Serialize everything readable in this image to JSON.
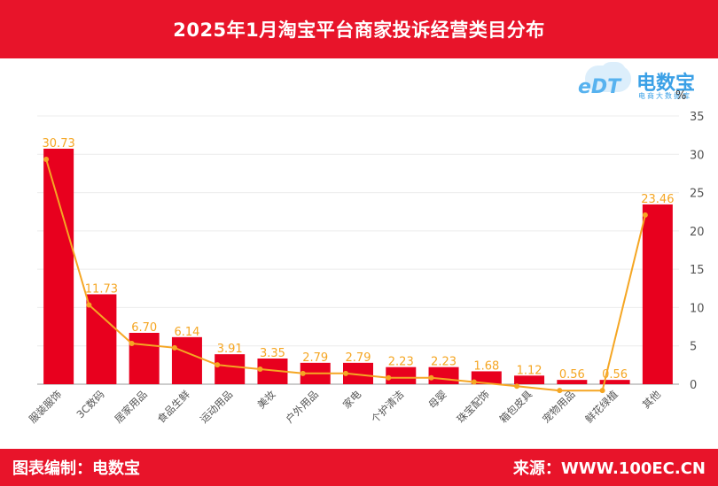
{
  "header": {
    "title": "2025年1月淘宝平台商家投诉经营类目分布"
  },
  "footer": {
    "left": "图表编制：电数宝",
    "right": "来源：WWW.100EC.CN"
  },
  "logo": {
    "en": "eDT",
    "name": "电数宝",
    "sub": "电商大数据库"
  },
  "colors": {
    "bar": "#e8001e",
    "line": "#f5a623",
    "brand": "#e8142a"
  },
  "chart_data": {
    "type": "bar",
    "categories": [
      "服装服饰",
      "3C数码",
      "居家用品",
      "食品生鲜",
      "运动用品",
      "美妆",
      "户外用品",
      "家电",
      "个护清洁",
      "母婴",
      "珠宝配饰",
      "箱包皮具",
      "宠物用品",
      "鲜花绿植",
      "其他"
    ],
    "values": [
      30.73,
      11.73,
      6.7,
      6.14,
      3.91,
      3.35,
      2.79,
      2.79,
      2.23,
      2.23,
      1.68,
      1.12,
      0.56,
      0.56,
      23.46
    ],
    "data_labels": [
      "30.73",
      "11.73",
      "6.70",
      "6.14",
      "3.91",
      "3.35",
      "2.79",
      "2.79",
      "2.23",
      "2.23",
      "1.68",
      "1.12",
      "0.56",
      "0.56",
      "23.46"
    ],
    "ylabel": "%",
    "ylim": [
      0,
      35
    ],
    "yticks": [
      "0",
      "5",
      "10",
      "15",
      "20",
      "25",
      "30",
      "35"
    ],
    "overlay_line": true,
    "grid": true
  }
}
